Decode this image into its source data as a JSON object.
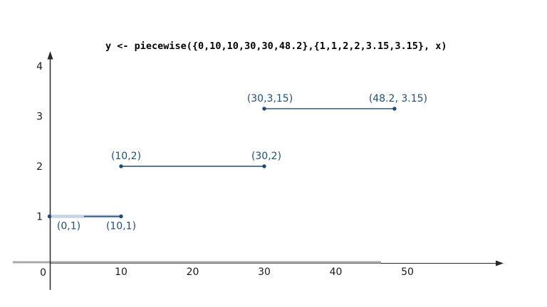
{
  "chart_data": {
    "type": "line",
    "title": "y <- piecewise({0,10,10,30,30,48.2},{1,1,2,2,3.15,3.15}, x)",
    "x_ticks": [
      "10",
      "20",
      "30",
      "40",
      "50"
    ],
    "y_ticks": [
      "1",
      "2",
      "3",
      "4"
    ],
    "origin_label": "0",
    "x_range": [
      0,
      62
    ],
    "y_range": [
      0,
      4.3
    ],
    "grid": false,
    "legend": false,
    "segments": [
      {
        "x1": 0,
        "y1": 1,
        "x2": 10,
        "y2": 1,
        "highlight": true
      },
      {
        "x1": 10,
        "y1": 2,
        "x2": 30,
        "y2": 2,
        "highlight": false
      },
      {
        "x1": 30,
        "y1": 3.15,
        "x2": 48.2,
        "y2": 3.15,
        "highlight": false
      }
    ],
    "points": [
      {
        "x": 0,
        "y": 1,
        "label": "(0,1)",
        "label_pos": "below",
        "label_dx": 27
      },
      {
        "x": 10,
        "y": 1,
        "label": "(10,1)",
        "label_pos": "below",
        "label_dx": 0
      },
      {
        "x": 10,
        "y": 2,
        "label": "(10,2)",
        "label_pos": "above",
        "label_dx": 7
      },
      {
        "x": 30,
        "y": 2,
        "label": "(30,2)",
        "label_pos": "above",
        "label_dx": 3
      },
      {
        "x": 30,
        "y": 3.15,
        "label": "(30,3,15)",
        "label_pos": "above",
        "label_dx": 8
      },
      {
        "x": 48.2,
        "y": 3.15,
        "label": "(48.2, 3.15)",
        "label_pos": "above",
        "label_dx": 5
      }
    ],
    "colors": {
      "series": "#1f4a73",
      "point_label": "#1f4e79",
      "highlight": "#c6d4e6",
      "axis": "#2a2a2a",
      "axis_overlay_gray": "#a9a9a9",
      "tick_label": "#1a1a1a",
      "background": "#ffffff"
    }
  }
}
